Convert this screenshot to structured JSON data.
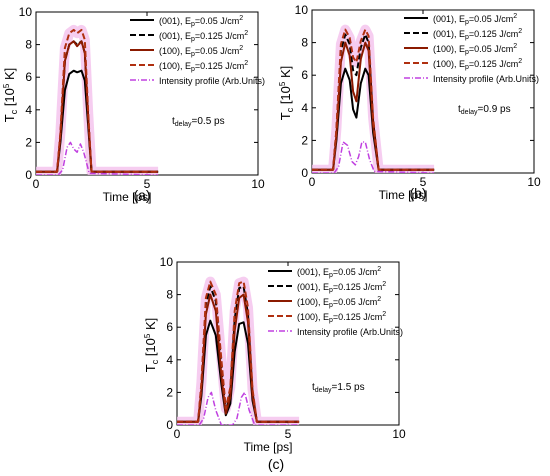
{
  "chart_data": [
    {
      "type": "line",
      "panel_label": "(a)",
      "xlabel": "Time  [ps]",
      "ylabel": "T",
      "ylabel_sub": "c",
      "ylabel_unit": " [10",
      "ylabel_exp": "5",
      "ylabel_tail": " K]",
      "xlim": [
        0,
        10
      ],
      "ylim": [
        0,
        10
      ],
      "xticks": [
        "0",
        "5",
        "10"
      ],
      "yticks": [
        "0",
        "2",
        "4",
        "6",
        "8",
        "10"
      ],
      "annotation": "t",
      "annotation_sub": "delay",
      "annotation_val": "=0.5 ps",
      "series": [
        {
          "name": "(001), E",
          "name_sub": "p",
          "name_val": "=0.05 J/cm",
          "name_exp": "2",
          "color": "#000000",
          "dash": "",
          "x": [
            0.0,
            0.95,
            1.1,
            1.3,
            1.5,
            1.7,
            1.85,
            2.05,
            2.2,
            2.35,
            2.5,
            3.0,
            5.5
          ],
          "y": [
            0.2,
            0.2,
            2.0,
            5.2,
            6.2,
            6.4,
            6.3,
            6.4,
            5.8,
            3.0,
            0.2,
            0.2,
            0.2
          ]
        },
        {
          "name": "(001), E",
          "name_sub": "p",
          "name_val": "=0.125 J/cm",
          "name_exp": "2",
          "color": "#000000",
          "dash": "6,3",
          "x": [
            0.0,
            0.95,
            1.1,
            1.3,
            1.5,
            1.7,
            1.85,
            2.05,
            2.2,
            2.35,
            2.5,
            3.0,
            5.5
          ],
          "y": [
            0.2,
            0.2,
            2.4,
            7.0,
            8.0,
            8.2,
            8.0,
            8.2,
            7.5,
            3.5,
            0.2,
            0.2,
            0.2
          ]
        },
        {
          "name": "(100), E",
          "name_sub": "p",
          "name_val": "=0.05 J/cm",
          "name_exp": "2",
          "color": "#8b1a00",
          "dash": "",
          "x": [
            0.0,
            0.95,
            1.1,
            1.3,
            1.5,
            1.7,
            1.85,
            2.05,
            2.2,
            2.35,
            2.5,
            3.0,
            5.5
          ],
          "y": [
            0.2,
            0.2,
            2.4,
            7.0,
            8.0,
            8.2,
            7.9,
            8.2,
            7.5,
            3.5,
            0.2,
            0.2,
            0.2
          ]
        },
        {
          "name": "(100), E",
          "name_sub": "p",
          "name_val": "=0.125 J/cm",
          "name_exp": "2",
          "color": "#b03010",
          "dash": "6,3",
          "x": [
            0.0,
            0.95,
            1.1,
            1.3,
            1.5,
            1.7,
            1.85,
            2.05,
            2.2,
            2.35,
            2.5,
            3.0,
            5.5
          ],
          "y": [
            0.2,
            0.2,
            2.6,
            7.8,
            8.7,
            8.9,
            8.7,
            8.9,
            8.3,
            3.8,
            0.2,
            0.2,
            0.2
          ]
        },
        {
          "name": "Intensity profile (Arb.Units)",
          "name_sub": "",
          "name_val": "",
          "name_exp": "",
          "color": "#c040e0",
          "dash": "6,2,1,2",
          "x": [
            0.0,
            1.0,
            1.2,
            1.4,
            1.55,
            1.7,
            1.85,
            2.0,
            2.15,
            2.4,
            5.5
          ],
          "y": [
            0.0,
            0.0,
            0.3,
            1.7,
            2.0,
            1.6,
            1.4,
            1.9,
            1.4,
            0.1,
            0.0
          ]
        }
      ]
    },
    {
      "type": "line",
      "panel_label": "(b)",
      "xlabel": "Time  [ps]",
      "ylabel": "T",
      "ylabel_sub": "c",
      "ylabel_unit": " [10",
      "ylabel_exp": "5",
      "ylabel_tail": " K]",
      "xlim": [
        0,
        10
      ],
      "ylim": [
        0,
        10
      ],
      "xticks": [
        "0",
        "5",
        "10"
      ],
      "yticks": [
        "0",
        "2",
        "4",
        "6",
        "8",
        "10"
      ],
      "annotation": "t",
      "annotation_sub": "delay",
      "annotation_val": "=0.9 ps",
      "series": [
        {
          "name": "(001), E",
          "name_sub": "p",
          "name_val": "=0.05 J/cm",
          "name_exp": "2",
          "color": "#000000",
          "dash": "",
          "x": [
            0.0,
            0.95,
            1.1,
            1.3,
            1.5,
            1.7,
            1.85,
            2.0,
            2.2,
            2.4,
            2.55,
            2.75,
            3.0,
            4.0,
            5.5
          ],
          "y": [
            0.2,
            0.2,
            2.0,
            5.5,
            6.4,
            5.7,
            3.9,
            3.4,
            5.5,
            6.4,
            6.0,
            2.5,
            0.2,
            0.2,
            0.2
          ]
        },
        {
          "name": "(001), E",
          "name_sub": "p",
          "name_val": "=0.125 J/cm",
          "name_exp": "2",
          "color": "#000000",
          "dash": "6,3",
          "x": [
            0.0,
            0.95,
            1.1,
            1.3,
            1.5,
            1.7,
            1.85,
            2.0,
            2.2,
            2.4,
            2.55,
            2.75,
            3.0,
            4.0,
            5.5
          ],
          "y": [
            0.2,
            0.2,
            2.6,
            7.5,
            8.5,
            7.9,
            6.3,
            6.0,
            7.7,
            8.5,
            8.0,
            3.2,
            0.2,
            0.2,
            0.2
          ]
        },
        {
          "name": "(100), E",
          "name_sub": "p",
          "name_val": "=0.05 J/cm",
          "name_exp": "2",
          "color": "#8b1a00",
          "dash": "",
          "x": [
            0.0,
            0.95,
            1.1,
            1.3,
            1.5,
            1.7,
            1.85,
            2.0,
            2.2,
            2.4,
            2.55,
            2.75,
            3.0,
            4.0,
            5.5
          ],
          "y": [
            0.2,
            0.2,
            2.3,
            6.8,
            8.0,
            7.2,
            5.0,
            4.4,
            7.0,
            8.0,
            7.5,
            2.9,
            0.2,
            0.2,
            0.2
          ]
        },
        {
          "name": "(100), E",
          "name_sub": "p",
          "name_val": "=0.125 J/cm",
          "name_exp": "2",
          "color": "#b03010",
          "dash": "6,3",
          "x": [
            0.0,
            0.95,
            1.1,
            1.3,
            1.5,
            1.7,
            1.85,
            2.0,
            2.2,
            2.4,
            2.55,
            2.75,
            3.0,
            4.0,
            5.5
          ],
          "y": [
            0.2,
            0.2,
            2.7,
            7.9,
            8.8,
            8.3,
            7.1,
            6.8,
            8.1,
            8.8,
            8.4,
            3.4,
            0.2,
            0.2,
            0.2
          ]
        },
        {
          "name": "Intensity profile (Arb.Units)",
          "name_sub": "",
          "name_val": "",
          "name_exp": "",
          "color": "#c040e0",
          "dash": "6,2,1,2",
          "x": [
            0.0,
            1.0,
            1.2,
            1.4,
            1.6,
            1.8,
            1.95,
            2.1,
            2.25,
            2.4,
            2.6,
            2.8,
            5.5
          ],
          "y": [
            0.0,
            0.0,
            0.4,
            1.9,
            1.7,
            0.7,
            0.5,
            1.0,
            1.9,
            1.9,
            0.8,
            0.1,
            0.0
          ]
        }
      ]
    },
    {
      "type": "line",
      "panel_label": "(c)",
      "xlabel": "Time  [ps]",
      "ylabel": "T",
      "ylabel_sub": "c",
      "ylabel_unit": " [10",
      "ylabel_exp": "5",
      "ylabel_tail": " K]",
      "xlim": [
        0,
        10
      ],
      "ylim": [
        0,
        10
      ],
      "xticks": [
        "0",
        "5",
        "10"
      ],
      "yticks": [
        "0",
        "2",
        "4",
        "6",
        "8",
        "10"
      ],
      "annotation": "t",
      "annotation_sub": "delay",
      "annotation_val": "=1.5 ps",
      "series": [
        {
          "name": "(001), E",
          "name_sub": "p",
          "name_val": "=0.05 J/cm",
          "name_exp": "2",
          "color": "#000000",
          "dash": "",
          "x": [
            0.0,
            0.95,
            1.1,
            1.3,
            1.5,
            1.75,
            2.0,
            2.2,
            2.4,
            2.6,
            2.8,
            3.0,
            3.2,
            3.4,
            3.6,
            4.0,
            5.5
          ],
          "y": [
            0.2,
            0.2,
            1.8,
            5.5,
            6.4,
            5.5,
            2.5,
            0.6,
            1.3,
            4.5,
            6.2,
            6.3,
            5.0,
            1.5,
            0.2,
            0.2,
            0.2
          ]
        },
        {
          "name": "(001), E",
          "name_sub": "p",
          "name_val": "=0.125 J/cm",
          "name_exp": "2",
          "color": "#000000",
          "dash": "6,3",
          "x": [
            0.0,
            0.95,
            1.1,
            1.3,
            1.5,
            1.75,
            2.0,
            2.2,
            2.4,
            2.6,
            2.8,
            3.0,
            3.2,
            3.4,
            3.6,
            4.0,
            5.5
          ],
          "y": [
            0.2,
            0.2,
            2.4,
            7.4,
            8.5,
            7.6,
            3.5,
            0.8,
            2.0,
            6.5,
            8.4,
            8.5,
            6.8,
            2.0,
            0.2,
            0.2,
            0.2
          ]
        },
        {
          "name": "(100), E",
          "name_sub": "p",
          "name_val": "=0.05 J/cm",
          "name_exp": "2",
          "color": "#8b1a00",
          "dash": "",
          "x": [
            0.0,
            0.95,
            1.1,
            1.3,
            1.5,
            1.75,
            2.0,
            2.2,
            2.4,
            2.6,
            2.8,
            3.0,
            3.2,
            3.4,
            3.6,
            4.0,
            5.5
          ],
          "y": [
            0.2,
            0.2,
            2.2,
            6.8,
            8.0,
            7.0,
            3.0,
            0.7,
            1.7,
            5.8,
            7.8,
            8.0,
            6.3,
            1.8,
            0.2,
            0.2,
            0.2
          ]
        },
        {
          "name": "(100), E",
          "name_sub": "p",
          "name_val": "=0.125 J/cm",
          "name_exp": "2",
          "color": "#b03010",
          "dash": "6,3",
          "x": [
            0.0,
            0.95,
            1.1,
            1.3,
            1.5,
            1.75,
            2.0,
            2.2,
            2.4,
            2.6,
            2.8,
            3.0,
            3.2,
            3.4,
            3.6,
            4.0,
            5.5
          ],
          "y": [
            0.2,
            0.2,
            2.6,
            7.8,
            8.8,
            8.0,
            4.0,
            1.0,
            2.3,
            7.0,
            8.7,
            8.8,
            7.2,
            2.2,
            0.2,
            0.2,
            0.2
          ]
        },
        {
          "name": "Intensity profile (Arb.Units)",
          "name_sub": "",
          "name_val": "",
          "name_exp": "",
          "color": "#c040e0",
          "dash": "6,2,1,2",
          "x": [
            0.0,
            1.0,
            1.2,
            1.4,
            1.55,
            1.75,
            2.0,
            2.5,
            2.7,
            2.9,
            3.05,
            3.25,
            3.5,
            5.5
          ],
          "y": [
            0.0,
            0.0,
            0.4,
            1.7,
            2.0,
            0.9,
            0.0,
            0.0,
            0.4,
            1.7,
            2.0,
            0.9,
            0.0,
            0.0
          ]
        }
      ]
    }
  ]
}
